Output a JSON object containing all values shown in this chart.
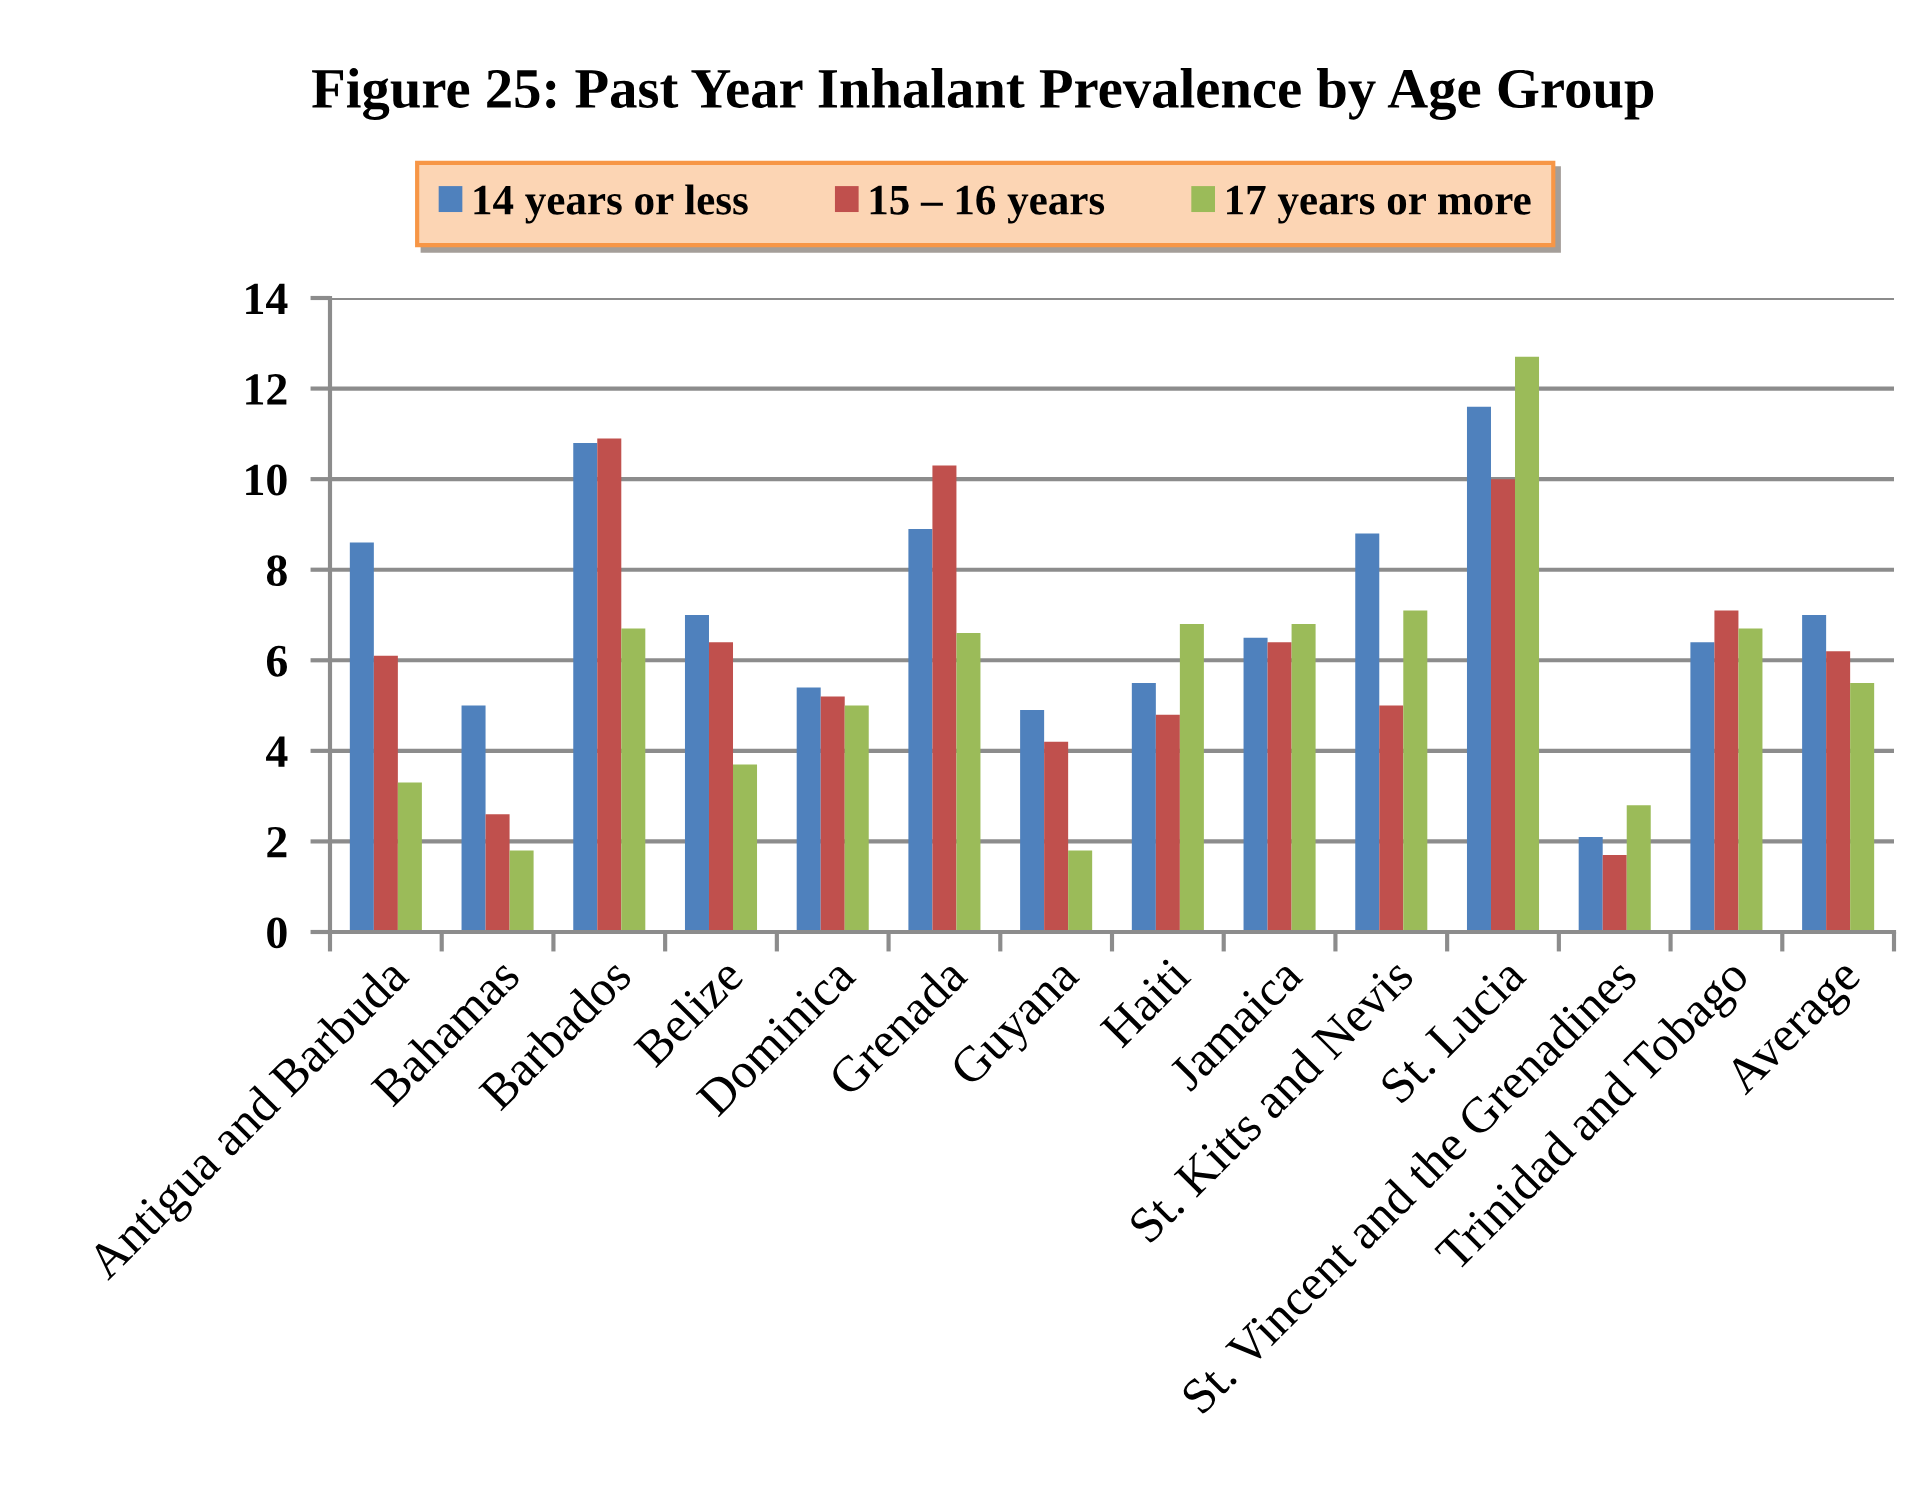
{
  "chart_data": {
    "type": "bar",
    "title": "Figure 25: Past Year Inhalant Prevalence by Age Group",
    "categories": [
      "Antigua and Barbuda",
      "Bahamas",
      "Barbados",
      "Belize",
      "Dominica",
      "Grenada",
      "Guyana",
      "Haiti",
      "Jamaica",
      "St. Kitts and Nevis",
      "St. Lucia",
      "St. Vincent and the Grenadines",
      "Trinidad and Tobago",
      "Average"
    ],
    "series": [
      {
        "name": "14 years or less",
        "color": "#4f81bd",
        "values": [
          8.6,
          5.0,
          10.8,
          7.0,
          5.4,
          8.9,
          4.9,
          5.5,
          6.5,
          8.8,
          11.6,
          2.1,
          6.4,
          7.0
        ]
      },
      {
        "name": "15 – 16 years",
        "color": "#c0504d",
        "values": [
          6.1,
          2.6,
          10.9,
          6.4,
          5.2,
          10.3,
          4.2,
          4.8,
          6.4,
          5.0,
          10.0,
          1.7,
          7.1,
          6.2
        ]
      },
      {
        "name": "17 years or more",
        "color": "#9bbb59",
        "values": [
          3.3,
          1.8,
          6.7,
          3.7,
          5.0,
          6.6,
          1.8,
          6.8,
          6.8,
          7.1,
          12.7,
          2.8,
          6.7,
          5.5
        ]
      }
    ],
    "ylim": [
      0,
      14
    ],
    "yticks": [
      0,
      2,
      4,
      6,
      8,
      10,
      12,
      14
    ],
    "grid": "y",
    "legend": "top"
  }
}
